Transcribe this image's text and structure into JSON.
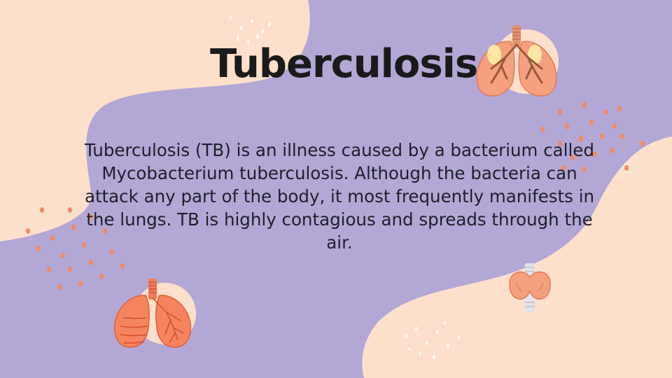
{
  "slide": {
    "title": "Tuberculosis",
    "body": "Tuberculosis (TB) is an illness caused by a bacterium called Mycobacterium tuberculosis. Although the bacteria can attack any part of the body, it most frequently manifests in the lungs. TB is highly contagious and spreads through the air."
  },
  "colors": {
    "background": "#b3a7d6",
    "blob": "#fde0cc",
    "accent": "#f08a63",
    "text": "#1a1a1a"
  },
  "icons": [
    "lungs-icon",
    "lungs-icon",
    "thyroid-icon"
  ]
}
